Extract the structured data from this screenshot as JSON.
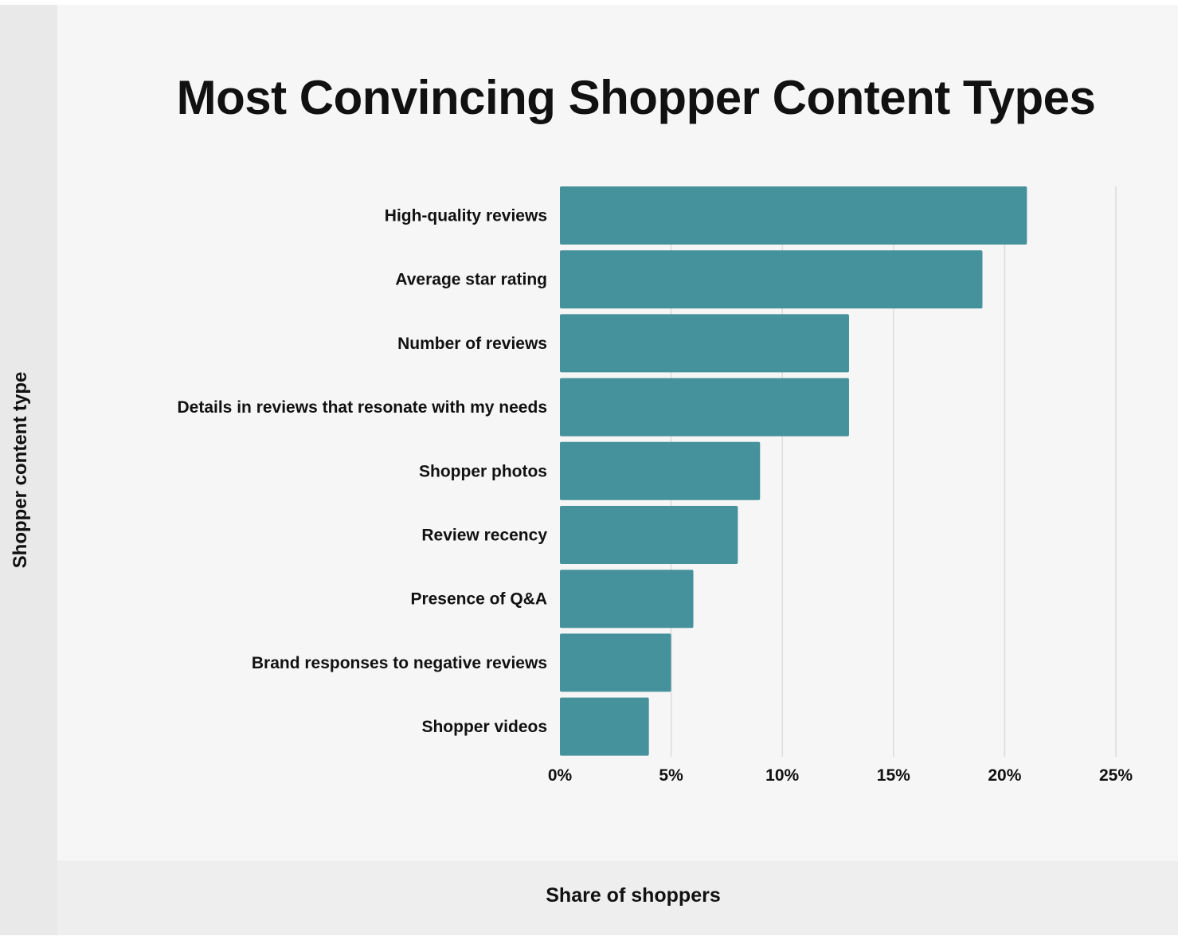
{
  "chart_data": {
    "type": "bar",
    "orientation": "horizontal",
    "title": "Most Convincing Shopper Content Types",
    "xlabel": "Share of shoppers",
    "ylabel": "Shopper content type",
    "categories": [
      "High-quality reviews",
      "Average star rating",
      "Number of reviews",
      "Details in reviews that resonate with my needs",
      "Shopper photos",
      "Review recency",
      "Presence of Q&A",
      "Brand responses to negative reviews",
      "Shopper videos"
    ],
    "values": [
      21,
      19,
      13,
      13,
      9,
      8,
      6,
      5,
      4
    ],
    "xlim": [
      0,
      25
    ],
    "xticks": [
      0,
      5,
      10,
      15,
      20,
      25
    ],
    "xtick_labels": [
      "0%",
      "5%",
      "10%",
      "15%",
      "20%",
      "25%"
    ],
    "grid": "vertical",
    "bar_color": "#45919c",
    "grid_color": "#dcdcdc"
  }
}
